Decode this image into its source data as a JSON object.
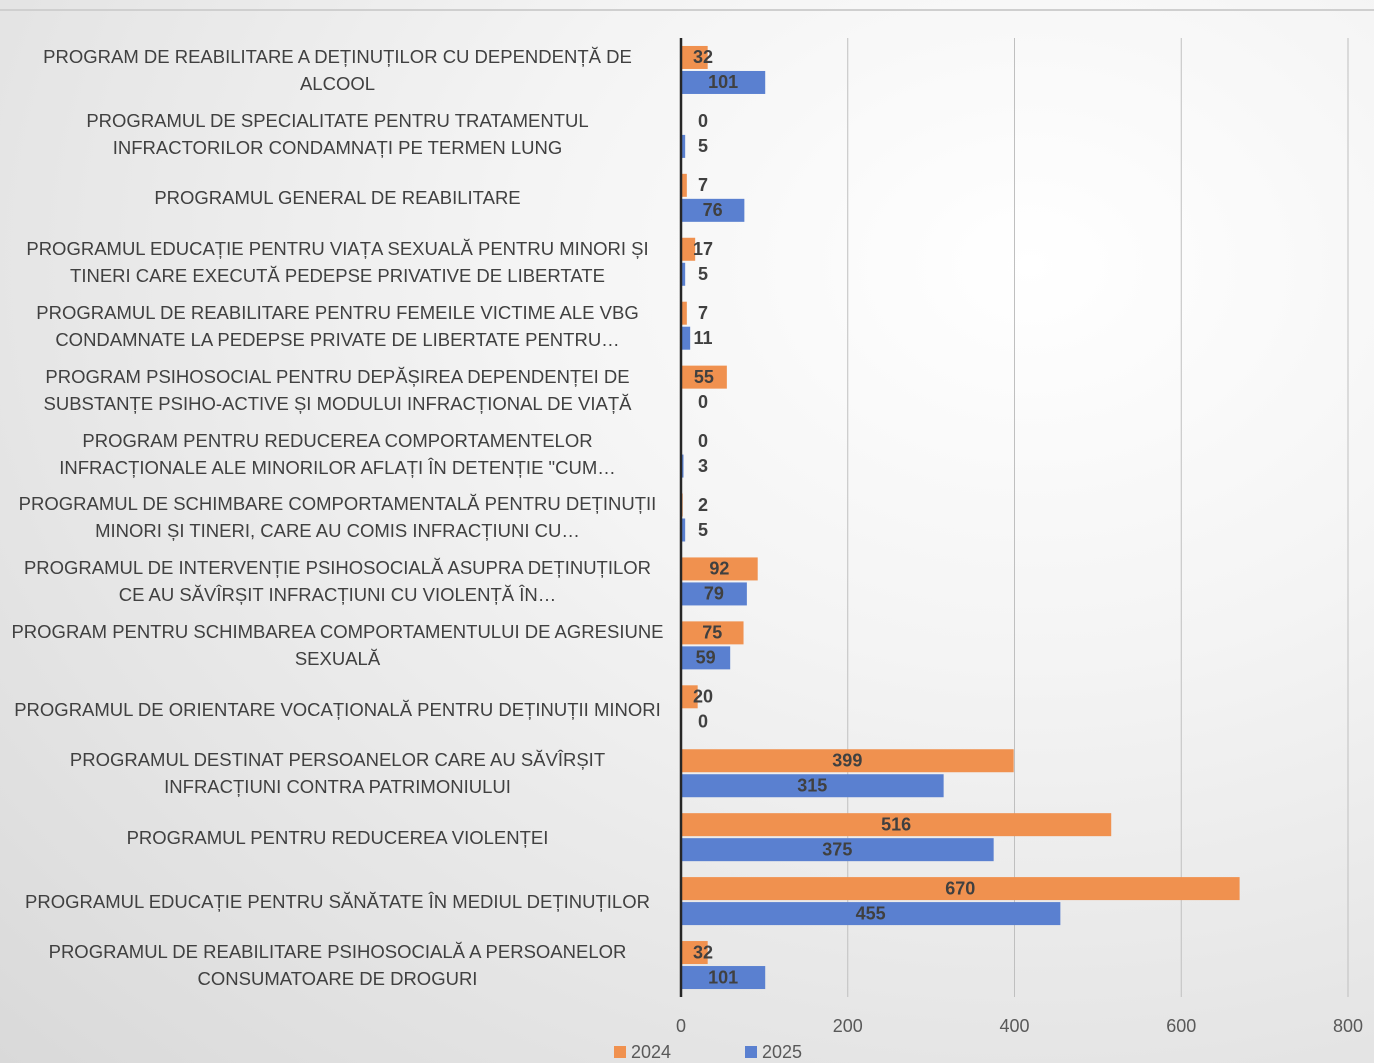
{
  "chart_data": {
    "type": "barh",
    "categories": [
      "PROGRAM DE REABILITARE A DEȚINUȚILOR CU DEPENDENȚĂ DE ALCOOL",
      "PROGRAMUL DE SPECIALITATE PENTRU TRATAMENTUL INFRACTORILOR CONDAMNAȚI PE TERMEN LUNG",
      "PROGRAMUL GENERAL DE REABILITARE",
      "PROGRAMUL EDUCAȚIE PENTRU VIAȚA SEXUALĂ PENTRU MINORI ȘI TINERI CARE EXECUTĂ PEDEPSE PRIVATIVE DE LIBERTATE",
      "PROGRAMUL DE REABILITARE PENTRU FEMEILE VICTIME ALE VBG CONDAMNATE LA PEDEPSE PRIVATE DE LIBERTATE PENTRU…",
      "PROGRAM PSIHOSOCIAL PENTRU DEPĂȘIREA DEPENDENȚEI DE SUBSTANȚE PSIHO-ACTIVE ȘI MODULUI INFRACȚIONAL DE VIAȚĂ",
      "PROGRAM PENTRU REDUCEREA COMPORTAMENTELOR INFRACȚIONALE ALE MINORILOR AFLAȚI ÎN DETENȚIE \"CUM…",
      "PROGRAMUL DE SCHIMBARE COMPORTAMENTALĂ PENTRU DEȚINUȚII MINORI ȘI TINERI, CARE AU COMIS INFRACȚIUNI CU…",
      "PROGRAMUL DE INTERVENȚIE PSIHOSOCIALĂ ASUPRA DEȚINUȚILOR CE AU SĂVÎRȘIT  INFRACȚIUNI CU VIOLENȚĂ ÎN…",
      "PROGRAM PENTRU SCHIMBAREA COMPORTAMENTULUI DE AGRESIUNE SEXUALĂ",
      "PROGRAMUL DE ORIENTARE VOCAȚIONALĂ PENTRU DEȚINUȚII MINORI",
      "PROGRAMUL DESTINAT PERSOANELOR CARE AU SĂVÎRȘIT INFRACȚIUNI CONTRA PATRIMONIULUI",
      "PROGRAMUL PENTRU REDUCEREA VIOLENȚEI",
      "PROGRAMUL EDUCAȚIE PENTRU SĂNĂTATE ÎN MEDIUL DEȚINUȚILOR",
      "PROGRAMUL DE REABILITARE PSIHOSOCIALĂ A PERSOANELOR CONSUMATOARE DE DROGURI"
    ],
    "series": [
      {
        "name": "2024",
        "color": "#f0914f",
        "values": [
          32,
          0,
          7,
          17,
          7,
          55,
          0,
          2,
          92,
          75,
          20,
          399,
          516,
          670,
          32
        ]
      },
      {
        "name": "2025",
        "color": "#5a80d0",
        "values": [
          101,
          5,
          76,
          5,
          11,
          0,
          3,
          5,
          79,
          59,
          0,
          315,
          375,
          455,
          101
        ]
      }
    ],
    "xlim": [
      0,
      800
    ],
    "xticks": [
      0,
      200,
      400,
      600,
      800
    ],
    "grid": true,
    "legend": "bottom"
  }
}
